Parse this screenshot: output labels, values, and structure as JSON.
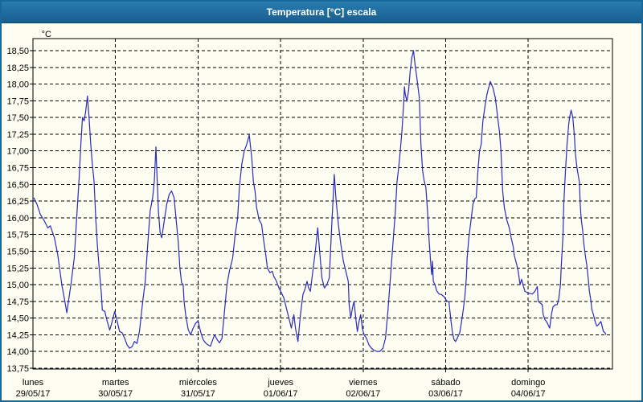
{
  "window": {
    "title": "Temperatura [°C] escala"
  },
  "chart_data": {
    "type": "line",
    "title": "Temperatura [°C] escala",
    "grid": "dashed",
    "legend": "none",
    "line_color": "#2b2bbb",
    "plot_background": "#fdfdf2",
    "y_axis": {
      "unit_label": "°C",
      "min": 13.75,
      "max": 18.5,
      "tick_step": 0.25,
      "tick_labels": [
        "18,50",
        "18,25",
        "18,00",
        "17,75",
        "17,50",
        "17,25",
        "17,00",
        "16,75",
        "16,50",
        "16,25",
        "16,00",
        "15,75",
        "15,50",
        "15,25",
        "15,00",
        "14,75",
        "14,50",
        "14,25",
        "14,00",
        "13,75"
      ]
    },
    "x_axis": {
      "span_days": 7.02,
      "days": [
        {
          "weekday": "lunes",
          "date": "29/05/17"
        },
        {
          "weekday": "martes",
          "date": "30/05/17"
        },
        {
          "weekday": "miércoles",
          "date": "31/05/17"
        },
        {
          "weekday": "jueves",
          "date": "01/06/17"
        },
        {
          "weekday": "viernes",
          "date": "02/06/17"
        },
        {
          "weekday": "sábado",
          "date": "03/06/17"
        },
        {
          "weekday": "domingo",
          "date": "04/06/17"
        }
      ]
    },
    "series": [
      {
        "name": "Temperatura",
        "points": [
          [
            0.01,
            16.3
          ],
          [
            0.05,
            16.2
          ],
          [
            0.09,
            16.05
          ],
          [
            0.14,
            15.95
          ],
          [
            0.18,
            15.85
          ],
          [
            0.21,
            15.88
          ],
          [
            0.26,
            15.7
          ],
          [
            0.3,
            15.45
          ],
          [
            0.35,
            15.0
          ],
          [
            0.38,
            14.8
          ],
          [
            0.41,
            14.58
          ],
          [
            0.46,
            15.0
          ],
          [
            0.5,
            15.4
          ],
          [
            0.53,
            16.0
          ],
          [
            0.56,
            16.6
          ],
          [
            0.58,
            17.1
          ],
          [
            0.6,
            17.5
          ],
          [
            0.62,
            17.45
          ],
          [
            0.64,
            17.6
          ],
          [
            0.66,
            17.82
          ],
          [
            0.68,
            17.5
          ],
          [
            0.7,
            17.1
          ],
          [
            0.72,
            16.8
          ],
          [
            0.74,
            16.55
          ],
          [
            0.76,
            16.0
          ],
          [
            0.78,
            15.6
          ],
          [
            0.8,
            15.28
          ],
          [
            0.83,
            14.85
          ],
          [
            0.84,
            14.62
          ],
          [
            0.87,
            14.6
          ],
          [
            0.9,
            14.45
          ],
          [
            0.93,
            14.32
          ],
          [
            0.96,
            14.45
          ],
          [
            0.99,
            14.6
          ],
          [
            1.02,
            14.45
          ],
          [
            1.05,
            14.3
          ],
          [
            1.08,
            14.28
          ],
          [
            1.11,
            14.2
          ],
          [
            1.14,
            14.1
          ],
          [
            1.17,
            14.05
          ],
          [
            1.2,
            14.07
          ],
          [
            1.23,
            14.15
          ],
          [
            1.26,
            14.12
          ],
          [
            1.29,
            14.3
          ],
          [
            1.33,
            14.75
          ],
          [
            1.36,
            15.05
          ],
          [
            1.39,
            15.6
          ],
          [
            1.42,
            16.1
          ],
          [
            1.45,
            16.3
          ],
          [
            1.47,
            16.55
          ],
          [
            1.49,
            17.06
          ],
          [
            1.5,
            16.7
          ],
          [
            1.52,
            16.1
          ],
          [
            1.54,
            15.78
          ],
          [
            1.56,
            15.7
          ],
          [
            1.59,
            15.95
          ],
          [
            1.62,
            16.2
          ],
          [
            1.65,
            16.35
          ],
          [
            1.68,
            16.4
          ],
          [
            1.71,
            16.3
          ],
          [
            1.74,
            15.9
          ],
          [
            1.76,
            15.64
          ],
          [
            1.78,
            15.25
          ],
          [
            1.8,
            15.03
          ],
          [
            1.82,
            15.0
          ],
          [
            1.83,
            14.75
          ],
          [
            1.85,
            14.55
          ],
          [
            1.88,
            14.33
          ],
          [
            1.91,
            14.25
          ],
          [
            1.94,
            14.35
          ],
          [
            1.97,
            14.42
          ],
          [
            2.0,
            14.46
          ],
          [
            2.03,
            14.3
          ],
          [
            2.06,
            14.18
          ],
          [
            2.09,
            14.13
          ],
          [
            2.12,
            14.1
          ],
          [
            2.15,
            14.08
          ],
          [
            2.17,
            14.15
          ],
          [
            2.2,
            14.25
          ],
          [
            2.23,
            14.18
          ],
          [
            2.26,
            14.13
          ],
          [
            2.29,
            14.2
          ],
          [
            2.32,
            14.6
          ],
          [
            2.35,
            15.0
          ],
          [
            2.38,
            15.2
          ],
          [
            2.42,
            15.4
          ],
          [
            2.45,
            15.75
          ],
          [
            2.48,
            16.0
          ],
          [
            2.5,
            16.45
          ],
          [
            2.53,
            16.8
          ],
          [
            2.56,
            17.0
          ],
          [
            2.59,
            17.1
          ],
          [
            2.62,
            17.24
          ],
          [
            2.65,
            16.9
          ],
          [
            2.67,
            16.55
          ],
          [
            2.69,
            16.4
          ],
          [
            2.71,
            16.15
          ],
          [
            2.74,
            15.97
          ],
          [
            2.77,
            15.9
          ],
          [
            2.79,
            15.7
          ],
          [
            2.82,
            15.45
          ],
          [
            2.84,
            15.25
          ],
          [
            2.87,
            15.18
          ],
          [
            2.9,
            15.2
          ],
          [
            2.92,
            15.12
          ],
          [
            2.95,
            15.05
          ],
          [
            2.98,
            14.95
          ],
          [
            3.01,
            14.88
          ],
          [
            3.04,
            14.8
          ],
          [
            3.07,
            14.65
          ],
          [
            3.1,
            14.5
          ],
          [
            3.13,
            14.35
          ],
          [
            3.16,
            14.55
          ],
          [
            3.18,
            14.35
          ],
          [
            3.21,
            14.15
          ],
          [
            3.24,
            14.55
          ],
          [
            3.27,
            14.85
          ],
          [
            3.3,
            14.95
          ],
          [
            3.32,
            15.05
          ],
          [
            3.34,
            14.95
          ],
          [
            3.36,
            14.9
          ],
          [
            3.39,
            15.2
          ],
          [
            3.42,
            15.5
          ],
          [
            3.45,
            15.85
          ],
          [
            3.48,
            15.4
          ],
          [
            3.5,
            15.1
          ],
          [
            3.53,
            14.95
          ],
          [
            3.56,
            15.0
          ],
          [
            3.59,
            15.1
          ],
          [
            3.62,
            15.9
          ],
          [
            3.64,
            16.4
          ],
          [
            3.65,
            16.65
          ],
          [
            3.67,
            16.3
          ],
          [
            3.7,
            15.9
          ],
          [
            3.73,
            15.6
          ],
          [
            3.76,
            15.35
          ],
          [
            3.79,
            15.2
          ],
          [
            3.82,
            15.05
          ],
          [
            3.83,
            14.7
          ],
          [
            3.85,
            14.5
          ],
          [
            3.87,
            14.65
          ],
          [
            3.89,
            14.75
          ],
          [
            3.91,
            14.5
          ],
          [
            3.93,
            14.3
          ],
          [
            3.95,
            14.45
          ],
          [
            3.97,
            14.55
          ],
          [
            3.99,
            14.35
          ],
          [
            4.01,
            14.25
          ],
          [
            4.04,
            14.2
          ],
          [
            4.07,
            14.1
          ],
          [
            4.1,
            14.05
          ],
          [
            4.13,
            14.02
          ],
          [
            4.17,
            14.0
          ],
          [
            4.2,
            14.0
          ],
          [
            4.24,
            14.05
          ],
          [
            4.27,
            14.2
          ],
          [
            4.3,
            14.6
          ],
          [
            4.33,
            15.1
          ],
          [
            4.36,
            15.6
          ],
          [
            4.39,
            16.1
          ],
          [
            4.41,
            16.53
          ],
          [
            4.43,
            16.75
          ],
          [
            4.45,
            17.0
          ],
          [
            4.47,
            17.3
          ],
          [
            4.49,
            17.7
          ],
          [
            4.5,
            17.96
          ],
          [
            4.51,
            17.85
          ],
          [
            4.53,
            17.74
          ],
          [
            4.55,
            17.9
          ],
          [
            4.57,
            18.2
          ],
          [
            4.59,
            18.4
          ],
          [
            4.61,
            18.5
          ],
          [
            4.63,
            18.28
          ],
          [
            4.65,
            18.1
          ],
          [
            4.67,
            17.9
          ],
          [
            4.68,
            17.8
          ],
          [
            4.7,
            17.1
          ],
          [
            4.72,
            16.7
          ],
          [
            4.74,
            16.55
          ],
          [
            4.76,
            16.45
          ],
          [
            4.78,
            16.1
          ],
          [
            4.8,
            15.64
          ],
          [
            4.82,
            15.3
          ],
          [
            4.83,
            15.15
          ],
          [
            4.84,
            15.35
          ],
          [
            4.85,
            15.05
          ],
          [
            4.87,
            15.0
          ],
          [
            4.89,
            14.91
          ],
          [
            4.92,
            14.86
          ],
          [
            4.95,
            14.85
          ],
          [
            4.98,
            14.82
          ],
          [
            5.01,
            14.76
          ],
          [
            5.04,
            14.74
          ],
          [
            5.06,
            14.5
          ],
          [
            5.08,
            14.3
          ],
          [
            5.1,
            14.18
          ],
          [
            5.12,
            14.15
          ],
          [
            5.14,
            14.2
          ],
          [
            5.17,
            14.28
          ],
          [
            5.18,
            14.35
          ],
          [
            5.21,
            14.6
          ],
          [
            5.23,
            14.8
          ],
          [
            5.25,
            15.1
          ],
          [
            5.26,
            15.4
          ],
          [
            5.28,
            15.7
          ],
          [
            5.31,
            16.0
          ],
          [
            5.33,
            16.2
          ],
          [
            5.35,
            16.28
          ],
          [
            5.37,
            16.3
          ],
          [
            5.39,
            16.7
          ],
          [
            5.41,
            17.0
          ],
          [
            5.43,
            17.1
          ],
          [
            5.45,
            17.45
          ],
          [
            5.48,
            17.7
          ],
          [
            5.5,
            17.85
          ],
          [
            5.54,
            18.04
          ],
          [
            5.57,
            17.95
          ],
          [
            5.6,
            17.8
          ],
          [
            5.63,
            17.5
          ],
          [
            5.65,
            17.3
          ],
          [
            5.67,
            17.0
          ],
          [
            5.69,
            16.4
          ],
          [
            5.71,
            16.15
          ],
          [
            5.74,
            15.97
          ],
          [
            5.77,
            15.85
          ],
          [
            5.79,
            15.72
          ],
          [
            5.82,
            15.55
          ],
          [
            5.83,
            15.44
          ],
          [
            5.86,
            15.3
          ],
          [
            5.88,
            15.19
          ],
          [
            5.9,
            15.0
          ],
          [
            5.92,
            15.08
          ],
          [
            5.94,
            14.98
          ],
          [
            5.96,
            14.9
          ],
          [
            5.99,
            14.88
          ],
          [
            6.02,
            14.87
          ],
          [
            6.05,
            14.86
          ],
          [
            6.08,
            14.9
          ],
          [
            6.11,
            14.97
          ],
          [
            6.12,
            14.75
          ],
          [
            6.15,
            14.72
          ],
          [
            6.17,
            14.7
          ],
          [
            6.18,
            14.56
          ],
          [
            6.2,
            14.48
          ],
          [
            6.22,
            14.45
          ],
          [
            6.24,
            14.4
          ],
          [
            6.26,
            14.35
          ],
          [
            6.28,
            14.55
          ],
          [
            6.3,
            14.67
          ],
          [
            6.33,
            14.7
          ],
          [
            6.35,
            14.7
          ],
          [
            6.37,
            14.79
          ],
          [
            6.39,
            15.0
          ],
          [
            6.4,
            15.28
          ],
          [
            6.42,
            15.72
          ],
          [
            6.43,
            16.2
          ],
          [
            6.45,
            16.69
          ],
          [
            6.47,
            17.1
          ],
          [
            6.49,
            17.4
          ],
          [
            6.5,
            17.5
          ],
          [
            6.52,
            17.61
          ],
          [
            6.54,
            17.5
          ],
          [
            6.56,
            17.2
          ],
          [
            6.57,
            16.97
          ],
          [
            6.59,
            16.75
          ],
          [
            6.62,
            16.53
          ],
          [
            6.63,
            16.2
          ],
          [
            6.64,
            16.0
          ],
          [
            6.66,
            15.8
          ],
          [
            6.67,
            15.64
          ],
          [
            6.69,
            15.45
          ],
          [
            6.71,
            15.28
          ],
          [
            6.73,
            15.05
          ],
          [
            6.74,
            14.91
          ],
          [
            6.76,
            14.75
          ],
          [
            6.77,
            14.63
          ],
          [
            6.79,
            14.55
          ],
          [
            6.81,
            14.45
          ],
          [
            6.83,
            14.38
          ],
          [
            6.85,
            14.4
          ],
          [
            6.88,
            14.45
          ],
          [
            6.9,
            14.35
          ],
          [
            6.91,
            14.3
          ],
          [
            6.93,
            14.28
          ],
          [
            6.94,
            14.25
          ]
        ]
      }
    ]
  }
}
